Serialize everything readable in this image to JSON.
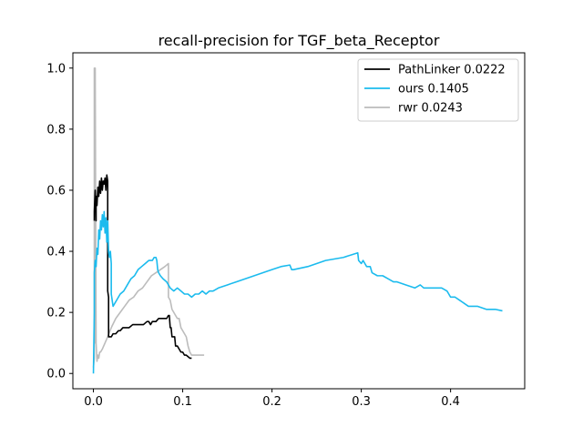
{
  "chart_data": {
    "type": "line",
    "title": "recall-precision for TGF_beta_Receptor",
    "xlabel": "",
    "ylabel": "",
    "xlim": [
      -0.023,
      0.483
    ],
    "ylim": [
      -0.05,
      1.05
    ],
    "xticks": [
      0.0,
      0.1,
      0.2,
      0.3,
      0.4
    ],
    "xtick_labels": [
      "0.0",
      "0.1",
      "0.2",
      "0.3",
      "0.4"
    ],
    "yticks": [
      0.0,
      0.2,
      0.4,
      0.6,
      0.8,
      1.0
    ],
    "ytick_labels": [
      "0.0",
      "0.2",
      "0.4",
      "0.6",
      "0.8",
      "1.0"
    ],
    "grid": false,
    "legend": "top-right",
    "series": [
      {
        "name": "PathLinker 0.0222",
        "color": "#000000",
        "x": [
          0.001,
          0.001,
          0.002,
          0.003,
          0.003,
          0.004,
          0.005,
          0.006,
          0.007,
          0.008,
          0.009,
          0.01,
          0.011,
          0.012,
          0.013,
          0.014,
          0.015,
          0.016,
          0.016,
          0.017,
          0.017,
          0.018,
          0.02,
          0.022,
          0.025,
          0.028,
          0.03,
          0.033,
          0.036,
          0.04,
          0.044,
          0.048,
          0.052,
          0.056,
          0.06,
          0.062,
          0.064,
          0.066,
          0.068,
          0.07,
          0.073,
          0.076,
          0.079,
          0.082,
          0.084,
          0.085,
          0.086,
          0.087,
          0.088,
          0.089,
          0.09,
          0.091,
          0.092,
          0.093,
          0.094,
          0.096,
          0.098,
          0.1,
          0.102,
          0.104,
          0.106,
          0.108,
          0.11
        ],
        "y": [
          0.5,
          0.53,
          0.6,
          0.5,
          0.58,
          0.55,
          0.61,
          0.58,
          0.63,
          0.59,
          0.64,
          0.6,
          0.63,
          0.62,
          0.64,
          0.6,
          0.65,
          0.63,
          0.27,
          0.25,
          0.12,
          0.12,
          0.12,
          0.13,
          0.13,
          0.14,
          0.14,
          0.15,
          0.15,
          0.15,
          0.16,
          0.16,
          0.16,
          0.16,
          0.17,
          0.17,
          0.16,
          0.17,
          0.17,
          0.17,
          0.18,
          0.18,
          0.18,
          0.18,
          0.19,
          0.19,
          0.15,
          0.15,
          0.12,
          0.12,
          0.12,
          0.12,
          0.09,
          0.09,
          0.09,
          0.08,
          0.07,
          0.07,
          0.06,
          0.06,
          0.055,
          0.05,
          0.05
        ]
      },
      {
        "name": "ours 0.1405",
        "color": "#1bbbee",
        "x": [
          0.0,
          0.001,
          0.001,
          0.002,
          0.003,
          0.004,
          0.005,
          0.006,
          0.007,
          0.008,
          0.009,
          0.01,
          0.011,
          0.012,
          0.013,
          0.014,
          0.015,
          0.016,
          0.017,
          0.018,
          0.019,
          0.02,
          0.02,
          0.022,
          0.026,
          0.03,
          0.034,
          0.038,
          0.042,
          0.046,
          0.05,
          0.054,
          0.058,
          0.062,
          0.066,
          0.068,
          0.07,
          0.071,
          0.072,
          0.073,
          0.075,
          0.078,
          0.082,
          0.086,
          0.09,
          0.094,
          0.098,
          0.102,
          0.106,
          0.11,
          0.114,
          0.118,
          0.122,
          0.126,
          0.13,
          0.134,
          0.14,
          0.15,
          0.16,
          0.17,
          0.18,
          0.19,
          0.2,
          0.21,
          0.22,
          0.222,
          0.224,
          0.24,
          0.26,
          0.28,
          0.296,
          0.297,
          0.3,
          0.302,
          0.306,
          0.31,
          0.312,
          0.318,
          0.324,
          0.33,
          0.336,
          0.34,
          0.35,
          0.36,
          0.366,
          0.37,
          0.38,
          0.39,
          0.396,
          0.4,
          0.405,
          0.41,
          0.42,
          0.43,
          0.44,
          0.45,
          0.458
        ],
        "y": [
          0.0,
          0.2,
          0.33,
          0.37,
          0.35,
          0.41,
          0.39,
          0.47,
          0.44,
          0.5,
          0.47,
          0.52,
          0.48,
          0.53,
          0.46,
          0.51,
          0.43,
          0.5,
          0.4,
          0.38,
          0.4,
          0.36,
          0.26,
          0.22,
          0.24,
          0.26,
          0.27,
          0.29,
          0.31,
          0.32,
          0.34,
          0.35,
          0.36,
          0.37,
          0.37,
          0.38,
          0.38,
          0.37,
          0.34,
          0.33,
          0.32,
          0.31,
          0.3,
          0.28,
          0.27,
          0.28,
          0.27,
          0.26,
          0.26,
          0.25,
          0.26,
          0.26,
          0.27,
          0.26,
          0.27,
          0.27,
          0.28,
          0.29,
          0.3,
          0.31,
          0.32,
          0.33,
          0.34,
          0.35,
          0.355,
          0.34,
          0.34,
          0.35,
          0.37,
          0.38,
          0.395,
          0.37,
          0.36,
          0.37,
          0.35,
          0.35,
          0.33,
          0.32,
          0.32,
          0.31,
          0.3,
          0.3,
          0.29,
          0.28,
          0.29,
          0.28,
          0.28,
          0.28,
          0.27,
          0.25,
          0.25,
          0.24,
          0.22,
          0.22,
          0.21,
          0.21,
          0.205
        ]
      },
      {
        "name": "rwr 0.0243",
        "color": "#bcbcbc",
        "x": [
          0.0,
          0.001,
          0.001,
          0.002,
          0.002,
          0.003,
          0.004,
          0.005,
          0.006,
          0.007,
          0.008,
          0.01,
          0.013,
          0.016,
          0.02,
          0.025,
          0.03,
          0.035,
          0.04,
          0.045,
          0.05,
          0.055,
          0.06,
          0.065,
          0.07,
          0.075,
          0.08,
          0.084,
          0.084,
          0.086,
          0.088,
          0.09,
          0.092,
          0.094,
          0.096,
          0.098,
          0.1,
          0.102,
          0.104,
          0.106,
          0.108,
          0.11,
          0.115,
          0.12,
          0.124
        ],
        "y": [
          0.02,
          0.05,
          1.0,
          0.1,
          1.0,
          0.1,
          0.04,
          0.06,
          0.05,
          0.07,
          0.07,
          0.08,
          0.1,
          0.12,
          0.15,
          0.18,
          0.2,
          0.22,
          0.24,
          0.25,
          0.27,
          0.28,
          0.3,
          0.32,
          0.33,
          0.34,
          0.35,
          0.36,
          0.25,
          0.24,
          0.21,
          0.2,
          0.19,
          0.18,
          0.18,
          0.15,
          0.14,
          0.13,
          0.12,
          0.09,
          0.07,
          0.06,
          0.06,
          0.06,
          0.06
        ]
      }
    ]
  }
}
